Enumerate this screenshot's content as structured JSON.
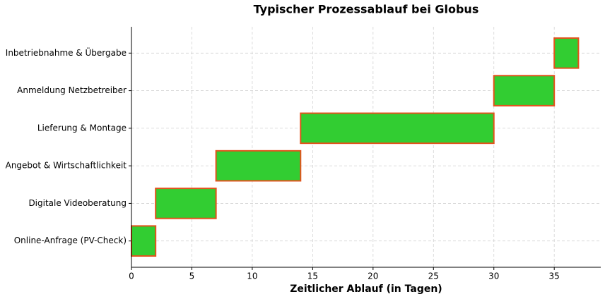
{
  "chart_data": {
    "type": "gantt",
    "title": "Typischer Prozessablauf bei Globus",
    "x_label": "Zeitlicher Ablauf (in Tagen)",
    "categories": [
      "Online-Anfrage (PV-Check)",
      "Digitale Videoberatung",
      "Angebot & Wirtschaftlichkeit",
      "Lieferung & Montage",
      "Anmeldung Netzbetreiber",
      "Inbetriebnahme & Übergabe"
    ],
    "starts": [
      0,
      2,
      7,
      14,
      30,
      35
    ],
    "durations": [
      2,
      5,
      7,
      16,
      5,
      2
    ],
    "color": "#32cd32",
    "edge_color": "#e2531c",
    "xlim": [
      0,
      38.85
    ],
    "xticks": [
      0,
      5,
      10,
      15,
      20,
      25,
      30,
      35
    ],
    "grid": true
  }
}
